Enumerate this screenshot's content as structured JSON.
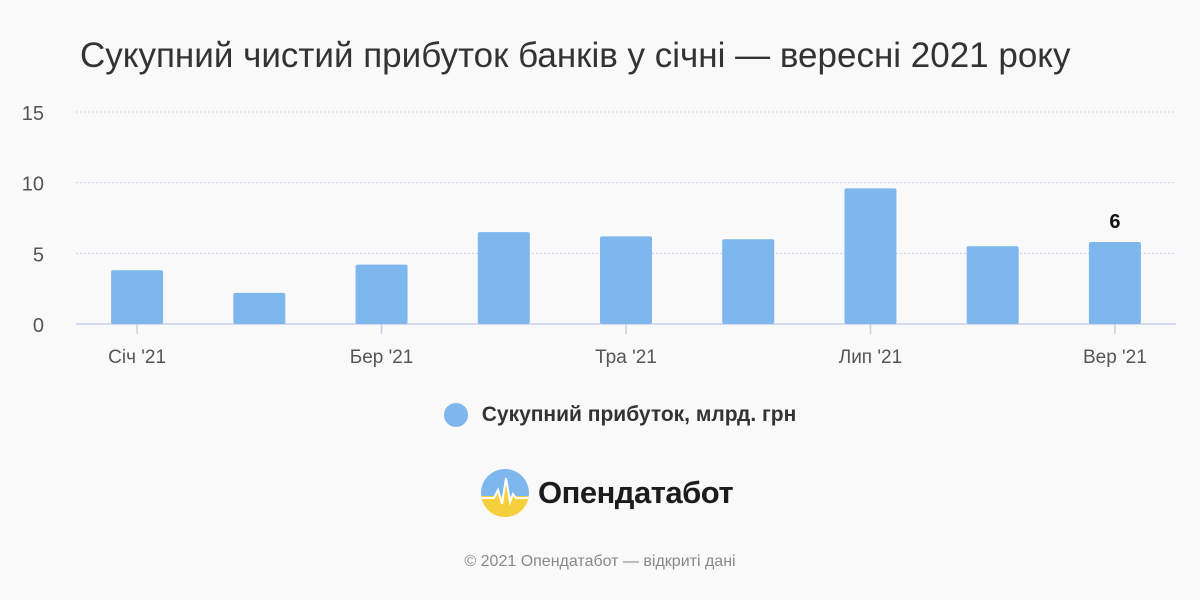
{
  "title": "Сукупний чистий прибуток банків у січні — вересні 2021 року",
  "legend": {
    "label": "Сукупний прибуток, млрд. грн"
  },
  "brand": {
    "name": "Опендатабот"
  },
  "footer": {
    "text": "© 2021 Опендатабот — відкриті дані"
  },
  "colors": {
    "bar": "#7eb6ee",
    "grid": "#c9cfe8",
    "text": "#333333",
    "axis_text": "#555555"
  },
  "chart_data": {
    "type": "bar",
    "title": "Сукупний чистий прибуток банків у січні — вересні 2021 року",
    "xlabel": "",
    "ylabel": "",
    "categories": [
      "Січ '21",
      "",
      "Бер '21",
      "",
      "Тра '21",
      "",
      "Лип '21",
      "",
      "Вер '21"
    ],
    "series": [
      {
        "name": "Сукупний прибуток, млрд. грн",
        "values": [
          3.8,
          2.2,
          4.2,
          6.5,
          6.2,
          6.0,
          9.6,
          5.5,
          5.8
        ]
      }
    ],
    "ylim": [
      0,
      15
    ],
    "yticks": [
      0,
      5,
      10,
      15
    ],
    "grid": true,
    "legend_position": "bottom-center",
    "data_labels": [
      {
        "index": 8,
        "text": "6"
      }
    ]
  }
}
